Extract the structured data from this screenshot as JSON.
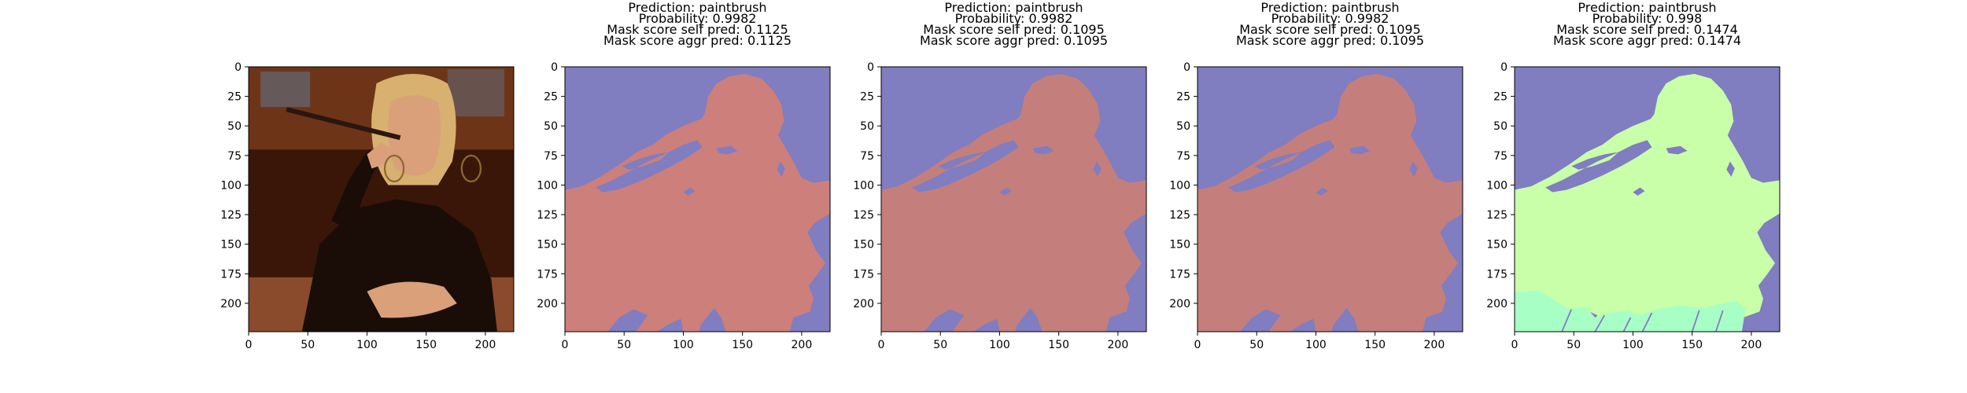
{
  "figure": {
    "panels": [
      {
        "title_lines": [],
        "kind": "photo",
        "colors": {
          "background": "#3a1608",
          "wall": "#6e3418",
          "window": "#5f7890",
          "skin": "#d9a07a",
          "hair": "#d8b070",
          "jacket": "#1a0d08",
          "table": "#8a4a2c"
        }
      },
      {
        "title_lines": [
          "Prediction: paintbrush",
          "Probability: 0.9982",
          "Mask score self pred: 0.1125",
          "Mask score aggr pred: 0.1125"
        ],
        "kind": "mask",
        "colors": {
          "background": "#807dc0",
          "mask": "#cd7f7c"
        }
      },
      {
        "title_lines": [
          "Prediction: paintbrush",
          "Probability: 0.9982",
          "Mask score self pred: 0.1095",
          "Mask score aggr pred: 0.1095"
        ],
        "kind": "mask",
        "colors": {
          "background": "#807dc0",
          "mask": "#c47f7c"
        }
      },
      {
        "title_lines": [
          "Prediction: paintbrush",
          "Probability: 0.9982",
          "Mask score self pred: 0.1095",
          "Mask score aggr pred: 0.1095"
        ],
        "kind": "mask",
        "colors": {
          "background": "#807dc0",
          "mask": "#c47f7c"
        }
      },
      {
        "title_lines": [
          "Prediction: paintbrush",
          "Probability: 0.998",
          "Mask score self pred: 0.1474",
          "Mask score aggr pred: 0.1474"
        ],
        "kind": "mask",
        "colors": {
          "background": "#807dc0",
          "mask": "#c9ffa8",
          "mask_secondary": "#a8ffc6"
        }
      }
    ]
  },
  "chart_data": {
    "type": "heatmap",
    "x_ticks": [
      0,
      50,
      100,
      150,
      200
    ],
    "y_ticks": [
      0,
      25,
      50,
      75,
      100,
      125,
      150,
      175,
      200
    ],
    "xlim": [
      0,
      224
    ],
    "ylim": [
      224,
      0
    ],
    "image_size": [
      224,
      224
    ],
    "xlabel": "",
    "ylabel": ""
  }
}
